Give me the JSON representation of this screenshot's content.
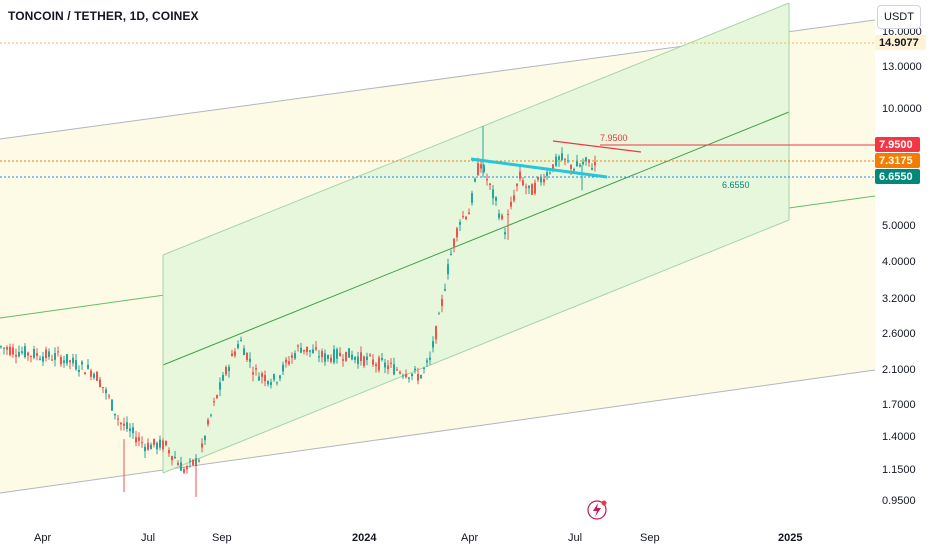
{
  "header": {
    "symbol_title": "TONCOIN / TETHER, 1D, COINEX",
    "currency_label": "USDT"
  },
  "chart_data": {
    "type": "candlestick",
    "scale": "log",
    "y_ticks": [
      "16.0000",
      "13.0000",
      "10.0000",
      "5.0000",
      "4.0000",
      "3.2000",
      "2.6000",
      "2.1000",
      "1.7000",
      "1.4000",
      "1.1500",
      "0.9500"
    ],
    "x_ticks": [
      {
        "label": "Apr",
        "bold": false
      },
      {
        "label": "Jul",
        "bold": false
      },
      {
        "label": "Sep",
        "bold": false
      },
      {
        "label": "2024",
        "bold": true
      },
      {
        "label": "Apr",
        "bold": false
      },
      {
        "label": "Jul",
        "bold": false
      },
      {
        "label": "Sep",
        "bold": false
      },
      {
        "label": "2025",
        "bold": true
      }
    ],
    "price_badges": [
      {
        "label": "14.9077",
        "value": 14.9077,
        "bg": "#fff3d6",
        "fg": "#131722",
        "line_color": "#f7b955"
      },
      {
        "label": "7.9500",
        "value": 7.95,
        "bg": "#f23645",
        "fg": "#ffffff",
        "line_color": "#f23645"
      },
      {
        "label": "7.3175",
        "value": 7.3175,
        "bg": "#f57c00",
        "fg": "#ffffff",
        "line_color": "#f57c00"
      },
      {
        "label": "6.6550",
        "value": 6.655,
        "bg": "#00897b",
        "fg": "#ffffff",
        "line_color": "#1e88e5"
      }
    ],
    "annotations": [
      {
        "label": "7.9500",
        "value": 7.95,
        "color": "#f23645"
      },
      {
        "label": "6.6550",
        "value": 6.655,
        "color": "#00897b"
      }
    ],
    "colors": {
      "up": "#26a69a",
      "down": "#ef5350"
    }
  }
}
